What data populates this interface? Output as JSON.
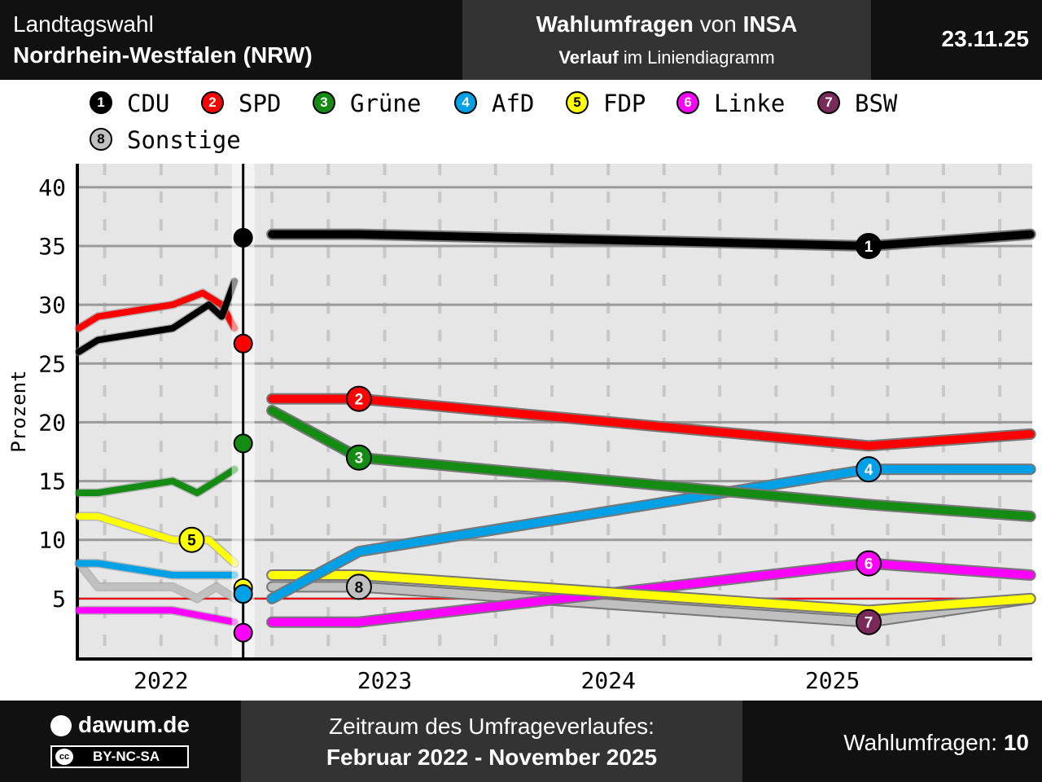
{
  "header": {
    "left_line1": "Landtagswahl",
    "left_line2": "Nordrhein-Westfalen (NRW)",
    "mid_bold1": "Wahlumfragen",
    "mid_text1": " von ",
    "mid_bold2": "INSA",
    "mid_bold3": "Verlauf",
    "mid_text2": " im Liniendiagramm",
    "date": "23.11.25"
  },
  "footer": {
    "site": "dawum.de",
    "license": "BY-NC-SA",
    "cc_mark": "cc",
    "period_label": "Zeitraum des Umfrageverlaufes:",
    "period": "Februar 2022 - November 2025",
    "count_label": "Wahlumfragen: ",
    "count": "10"
  },
  "legend": [
    {
      "num": "1",
      "name": "CDU",
      "color": "#000000",
      "text_color": "#ffffff"
    },
    {
      "num": "2",
      "name": "SPD",
      "color": "#ff0000",
      "text_color": "#ffffff"
    },
    {
      "num": "3",
      "name": "Grüne",
      "color": "#148c14",
      "text_color": "#ffffff"
    },
    {
      "num": "4",
      "name": "AfD",
      "color": "#00a0e6",
      "text_color": "#ffffff"
    },
    {
      "num": "5",
      "name": "FDP",
      "color": "#ffff00",
      "text_color": "#000000"
    },
    {
      "num": "6",
      "name": "Linke",
      "color": "#ff00ff",
      "text_color": "#ffffff"
    },
    {
      "num": "7",
      "name": "BSW",
      "color": "#7a2a5a",
      "text_color": "#ffffff"
    },
    {
      "num": "8",
      "name": "Sonstige",
      "color": "#c0c0c0",
      "text_color": "#000000"
    }
  ],
  "chart_data": {
    "type": "line",
    "ylabel": "Prozent",
    "ylim": [
      0,
      42
    ],
    "yticks": [
      5,
      10,
      15,
      20,
      25,
      30,
      35,
      40
    ],
    "xlim": [
      "2021-08-20",
      "2025-11-23"
    ],
    "xticks": [
      {
        "label": "2022",
        "date": "2022-01-01"
      },
      {
        "label": "2023",
        "date": "2023-01-01"
      },
      {
        "label": "2024",
        "date": "2024-01-01"
      },
      {
        "label": "2025",
        "date": "2025-01-01"
      }
    ],
    "election_date": "2022-05-15",
    "threshold": 5,
    "grid": true,
    "legend_position": "top",
    "series": [
      {
        "name": "CDU",
        "num": "1",
        "color": "#000000",
        "pre_election": [
          [
            "2021-08-20",
            26
          ],
          [
            "2021-09-20",
            27
          ],
          [
            "2022-01-20",
            28
          ],
          [
            "2022-03-20",
            30
          ],
          [
            "2022-04-10",
            29
          ],
          [
            "2022-05-01",
            32
          ]
        ],
        "result": 35.7,
        "values": [
          [
            "2022-07-01",
            36
          ],
          [
            "2022-11-20",
            36
          ],
          [
            "2025-03-01",
            35
          ],
          [
            "2025-11-20",
            36
          ]
        ],
        "marker": [
          "2025-03-01",
          35
        ]
      },
      {
        "name": "SPD",
        "num": "2",
        "color": "#ff0000",
        "pre_election": [
          [
            "2021-08-20",
            28
          ],
          [
            "2021-09-20",
            29
          ],
          [
            "2022-01-20",
            30
          ],
          [
            "2022-03-10",
            31
          ],
          [
            "2022-04-10",
            30
          ],
          [
            "2022-05-01",
            28
          ]
        ],
        "result": 26.7,
        "values": [
          [
            "2022-07-01",
            22
          ],
          [
            "2022-11-20",
            22
          ],
          [
            "2025-03-01",
            18
          ],
          [
            "2025-11-20",
            19
          ]
        ],
        "marker": [
          "2022-11-20",
          22
        ]
      },
      {
        "name": "Grüne",
        "num": "3",
        "color": "#148c14",
        "pre_election": [
          [
            "2021-08-20",
            14
          ],
          [
            "2021-09-20",
            14
          ],
          [
            "2022-01-20",
            15
          ],
          [
            "2022-03-01",
            14
          ],
          [
            "2022-04-01",
            15
          ],
          [
            "2022-05-01",
            16
          ]
        ],
        "result": 18.2,
        "values": [
          [
            "2022-07-01",
            21
          ],
          [
            "2022-11-20",
            17
          ],
          [
            "2025-03-01",
            13
          ],
          [
            "2025-11-20",
            12
          ]
        ],
        "marker": [
          "2022-11-20",
          17
        ]
      },
      {
        "name": "AfD",
        "num": "4",
        "color": "#00a0e6",
        "pre_election": [
          [
            "2021-08-20",
            8
          ],
          [
            "2021-09-20",
            8
          ],
          [
            "2022-01-20",
            7
          ],
          [
            "2022-05-01",
            7
          ]
        ],
        "result": 5.4,
        "values": [
          [
            "2022-07-01",
            5
          ],
          [
            "2022-11-20",
            9
          ],
          [
            "2025-03-01",
            16
          ],
          [
            "2025-11-20",
            16
          ]
        ],
        "marker": [
          "2025-03-01",
          16
        ]
      },
      {
        "name": "FDP",
        "num": "5",
        "color": "#ffff00",
        "pre_election": [
          [
            "2021-08-20",
            12
          ],
          [
            "2021-09-20",
            12
          ],
          [
            "2022-01-20",
            10
          ],
          [
            "2022-03-20",
            10
          ],
          [
            "2022-05-01",
            8
          ]
        ],
        "result": 5.9,
        "values": [
          [
            "2022-07-01",
            7
          ],
          [
            "2022-11-20",
            7
          ],
          [
            "2025-03-01",
            4
          ],
          [
            "2025-11-20",
            5
          ]
        ],
        "marker": [
          "2022-02-20",
          10
        ]
      },
      {
        "name": "Linke",
        "num": "6",
        "color": "#ff00ff",
        "pre_election": [
          [
            "2021-08-20",
            4
          ],
          [
            "2022-01-20",
            4
          ],
          [
            "2022-05-01",
            3
          ]
        ],
        "result": 2.1,
        "values": [
          [
            "2022-07-01",
            3
          ],
          [
            "2022-11-20",
            3
          ],
          [
            "2025-03-01",
            8
          ],
          [
            "2025-11-20",
            7
          ]
        ],
        "marker": [
          "2025-03-01",
          8
        ]
      },
      {
        "name": "BSW",
        "num": "7",
        "color": "#7a2a5a",
        "values": [],
        "marker": [
          "2025-03-01",
          3
        ]
      },
      {
        "name": "Sonstige",
        "num": "8",
        "color": "#c0c0c0",
        "pre_election": [
          [
            "2021-08-20",
            8
          ],
          [
            "2021-09-20",
            6
          ],
          [
            "2022-01-20",
            6
          ],
          [
            "2022-03-01",
            5
          ],
          [
            "2022-04-01",
            6
          ],
          [
            "2022-05-01",
            5
          ]
        ],
        "values": [
          [
            "2022-07-01",
            6
          ],
          [
            "2022-11-20",
            6
          ],
          [
            "2025-03-01",
            3
          ],
          [
            "2025-11-20",
            5
          ]
        ],
        "marker": [
          "2022-11-20",
          6
        ]
      }
    ]
  }
}
